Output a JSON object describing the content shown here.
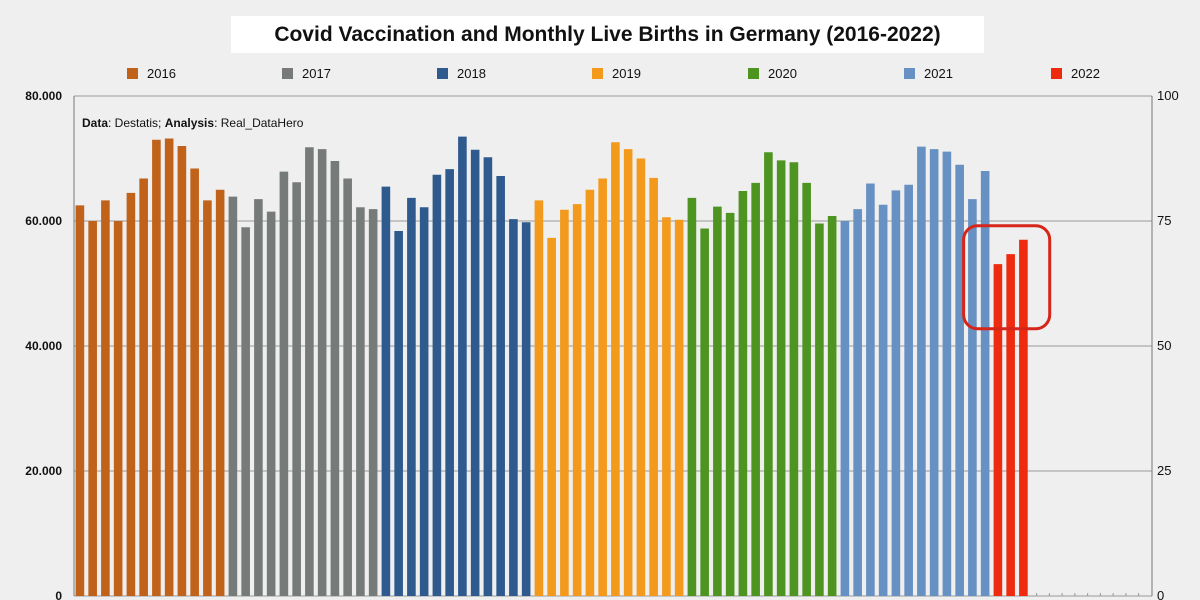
{
  "chart_data": {
    "type": "bar",
    "title": "Covid Vaccination and Monthly Live Births in Germany (2016-2022)",
    "source_label": "Data",
    "source_value": ": Destatis; ",
    "analysis_label": "Analysis",
    "analysis_value": ": Real_DataHero",
    "left_axis": {
      "ylim": [
        0,
        80000
      ],
      "ticks": [
        "0",
        "20.000",
        "40.000",
        "60.000",
        "80.000"
      ],
      "tick_values": [
        0,
        20000,
        40000,
        60000,
        80000
      ]
    },
    "right_axis": {
      "ylim": [
        0,
        100
      ],
      "ticks": [
        "0",
        "25",
        "50",
        "75",
        "100"
      ],
      "tick_values": [
        0,
        25,
        50,
        75,
        100
      ]
    },
    "grid": true,
    "legend_position": "top",
    "series": [
      {
        "name": "2016",
        "color": "#c0621a",
        "values": [
          62500,
          60000,
          63300,
          60000,
          64500,
          66800,
          73000,
          73200,
          72000,
          68400,
          63300,
          65000
        ]
      },
      {
        "name": "2017",
        "color": "#767b79",
        "values": [
          63900,
          59000,
          63500,
          61500,
          67900,
          66200,
          71800,
          71500,
          69600,
          66800,
          62200,
          61900
        ]
      },
      {
        "name": "2018",
        "color": "#2e5a8e",
        "values": [
          65500,
          58400,
          63700,
          62200,
          67400,
          68300,
          73500,
          71400,
          70200,
          67200,
          60300,
          59800
        ]
      },
      {
        "name": "2019",
        "color": "#f39a1d",
        "values": [
          63300,
          57300,
          61800,
          62700,
          65000,
          66800,
          72600,
          71500,
          70000,
          66900,
          60600,
          60200
        ]
      },
      {
        "name": "2020",
        "color": "#4e9421",
        "values": [
          63700,
          58800,
          62300,
          61300,
          64800,
          66100,
          71000,
          69700,
          69400,
          66100,
          59600,
          60800
        ]
      },
      {
        "name": "2021",
        "color": "#6790c3",
        "values": [
          60000,
          61900,
          66000,
          62600,
          64900,
          65800,
          71900,
          71500,
          71100,
          69000,
          63500,
          68000
        ]
      },
      {
        "name": "2022",
        "color": "#ee2a0f",
        "values": [
          53100,
          54700,
          57000
        ]
      }
    ],
    "annotation": "rounded-rectangle highlight around 2022 bars"
  }
}
